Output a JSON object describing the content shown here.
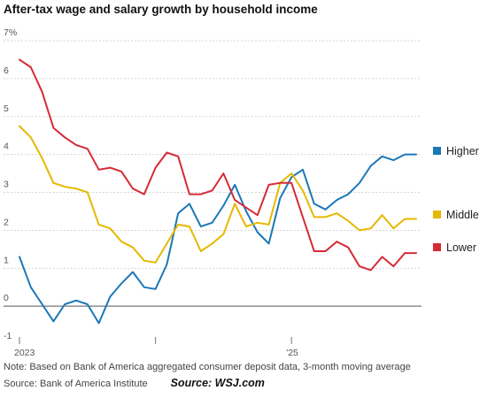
{
  "title": "After-tax wage and salary growth by household income",
  "note": "Note: Based on Bank of America aggregated consumer deposit data, 3-month moving average",
  "source": "Source: Bank of America Institute",
  "credit": "Source: WSJ.com",
  "colors": {
    "grid": "#c8c8c8",
    "zero_line": "#777777",
    "axis_text": "#555555"
  },
  "chart_data": {
    "type": "line",
    "ylim": [
      -1,
      7
    ],
    "y_ticks": [
      {
        "value": 7,
        "label": "7%"
      },
      {
        "value": 6,
        "label": "6"
      },
      {
        "value": 5,
        "label": "5"
      },
      {
        "value": 4,
        "label": "4"
      },
      {
        "value": 3,
        "label": "3"
      },
      {
        "value": 2,
        "label": "2"
      },
      {
        "value": 1,
        "label": "1"
      },
      {
        "value": 0,
        "label": "0"
      },
      {
        "value": -1,
        "label": "-1"
      }
    ],
    "x": [
      "2023-01",
      "2023-02",
      "2023-03",
      "2023-04",
      "2023-05",
      "2023-06",
      "2023-07",
      "2023-08",
      "2023-09",
      "2023-10",
      "2023-11",
      "2023-12",
      "2024-01",
      "2024-02",
      "2024-03",
      "2024-04",
      "2024-05",
      "2024-06",
      "2024-07",
      "2024-08",
      "2024-09",
      "2024-10",
      "2024-11",
      "2024-12",
      "2025-01",
      "2025-02",
      "2025-03",
      "2025-04",
      "2025-05",
      "2025-06",
      "2025-07",
      "2025-08",
      "2025-09",
      "2025-10",
      "2025-11",
      "2025-12"
    ],
    "x_ticks": [
      {
        "x": "2023-01",
        "label": "2023"
      },
      {
        "x": "2024-01",
        "label": ""
      },
      {
        "x": "2025-01",
        "label": "'25"
      }
    ],
    "series": [
      {
        "name": "Higher",
        "color": "#1a78b6",
        "values": [
          1.3,
          0.5,
          0.05,
          -0.4,
          0.05,
          0.15,
          0.05,
          -0.45,
          0.25,
          0.6,
          0.9,
          0.5,
          0.45,
          1.1,
          2.45,
          2.7,
          2.1,
          2.2,
          2.65,
          3.2,
          2.5,
          1.95,
          1.65,
          2.85,
          3.4,
          3.6,
          2.7,
          2.55,
          2.8,
          2.95,
          3.25,
          3.7,
          3.95,
          3.85,
          4.0,
          4.0
        ]
      },
      {
        "name": "Middle",
        "color": "#e6b800",
        "values": [
          4.75,
          4.45,
          3.9,
          3.25,
          3.15,
          3.1,
          3.0,
          2.15,
          2.05,
          1.7,
          1.55,
          1.2,
          1.15,
          1.65,
          2.15,
          2.1,
          1.45,
          1.65,
          1.9,
          2.7,
          2.1,
          2.2,
          2.15,
          3.25,
          3.5,
          3.05,
          2.35,
          2.35,
          2.45,
          2.25,
          2.0,
          2.05,
          2.4,
          2.05,
          2.3,
          2.3
        ]
      },
      {
        "name": "Lower",
        "color": "#d62a36",
        "values": [
          6.5,
          6.3,
          5.65,
          4.7,
          4.45,
          4.25,
          4.15,
          3.6,
          3.65,
          3.55,
          3.1,
          2.95,
          3.65,
          4.05,
          3.95,
          2.95,
          2.95,
          3.05,
          3.5,
          2.8,
          2.6,
          2.4,
          3.2,
          3.25,
          3.25,
          2.35,
          1.45,
          1.45,
          1.7,
          1.55,
          1.05,
          0.95,
          1.3,
          1.05,
          1.4,
          1.4
        ]
      }
    ],
    "legend": {
      "position": "right",
      "items": [
        "Higher",
        "Middle",
        "Lower"
      ]
    },
    "grid": true
  }
}
